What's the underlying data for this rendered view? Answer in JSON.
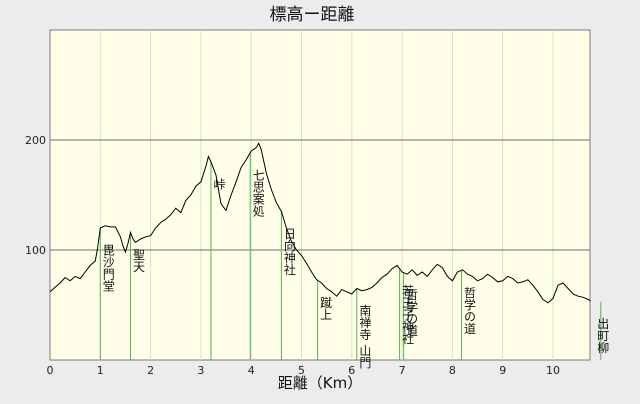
{
  "chart_data": {
    "type": "line",
    "title": "標高ー距離",
    "xlabel": "距離（Km）",
    "ylabel": "",
    "xlim": [
      0,
      10.9
    ],
    "ylim": [
      0,
      300
    ],
    "xticks": [
      0,
      1,
      2,
      3,
      4,
      5,
      6,
      7,
      8,
      9,
      10
    ],
    "yticks": [
      100,
      200
    ],
    "grid": "vertical lines at each km",
    "colors": {
      "background": "#ffffe9",
      "line": "#000000",
      "grid": "#cfe9b8",
      "markers": "#57b157",
      "axis": "#6e6e6e"
    },
    "series": [
      {
        "x": [
          0,
          0.1,
          0.2,
          0.3,
          0.4,
          0.5,
          0.6,
          0.7,
          0.8,
          0.9,
          0.95,
          1.0,
          1.1,
          1.2,
          1.3,
          1.4,
          1.45,
          1.5,
          1.55,
          1.6,
          1.65,
          1.7,
          1.8,
          1.9,
          2.0,
          2.1,
          2.2,
          2.3,
          2.4,
          2.5,
          2.6,
          2.7,
          2.8,
          2.9,
          3.0,
          3.1,
          3.15,
          3.2,
          3.3,
          3.4,
          3.5,
          3.6,
          3.7,
          3.8,
          3.9,
          4.0,
          4.1,
          4.15,
          4.2,
          4.3,
          4.4,
          4.5,
          4.6,
          4.7,
          4.8,
          4.9,
          5.0,
          5.1,
          5.2,
          5.3,
          5.4,
          5.5,
          5.6,
          5.7,
          5.8,
          5.9,
          6.0,
          6.1,
          6.2,
          6.3,
          6.4,
          6.5,
          6.6,
          6.7,
          6.8,
          6.9,
          7.0,
          7.1,
          7.2,
          7.3,
          7.4,
          7.5,
          7.6,
          7.7,
          7.8,
          7.9,
          8.0,
          8.1,
          8.2,
          8.3,
          8.4,
          8.5,
          8.6,
          8.7,
          8.8,
          8.9,
          9.0,
          9.1,
          9.2,
          9.3,
          9.4,
          9.5,
          9.6,
          9.7,
          9.8,
          9.9,
          10.0,
          10.1,
          10.2,
          10.3,
          10.4,
          10.5,
          10.6,
          10.7,
          10.8,
          10.9
        ],
        "y": [
          62,
          66,
          70,
          75,
          72,
          76,
          74,
          80,
          86,
          90,
          103,
          120,
          122,
          121,
          121,
          112,
          104,
          98,
          106,
          116,
          110,
          107,
          110,
          112,
          113,
          120,
          125,
          128,
          132,
          138,
          134,
          145,
          150,
          158,
          162,
          176,
          185,
          180,
          168,
          142,
          136,
          150,
          162,
          175,
          182,
          190,
          193,
          197,
          191,
          170,
          155,
          143,
          135,
          120,
          108,
          100,
          95,
          88,
          80,
          73,
          70,
          65,
          62,
          58,
          64,
          62,
          60,
          65,
          63,
          64,
          66,
          70,
          75,
          78,
          83,
          86,
          80,
          78,
          82,
          77,
          80,
          76,
          82,
          87,
          84,
          76,
          72,
          80,
          82,
          78,
          76,
          72,
          74,
          78,
          75,
          71,
          72,
          76,
          74,
          70,
          71,
          73,
          68,
          62,
          55,
          52,
          56,
          68,
          70,
          65,
          60,
          58,
          57,
          55,
          54,
          53
        ]
      }
    ],
    "markers": [
      {
        "x": 1.0,
        "label": "毘沙門堂"
      },
      {
        "x": 1.6,
        "label": "聖天"
      },
      {
        "x": 3.2,
        "label": "峠"
      },
      {
        "x": 3.98,
        "label": "七思案処"
      },
      {
        "x": 4.6,
        "label": "日向神社"
      },
      {
        "x": 5.32,
        "label": "蹴上"
      },
      {
        "x": 6.1,
        "label": "南禅寺 山門"
      },
      {
        "x": 6.95,
        "label": "若王子神社"
      },
      {
        "x": 7.03,
        "label": "哲学の道"
      },
      {
        "x": 8.18,
        "label": "哲学の道"
      },
      {
        "x": 10.95,
        "label": "出町柳"
      }
    ]
  }
}
